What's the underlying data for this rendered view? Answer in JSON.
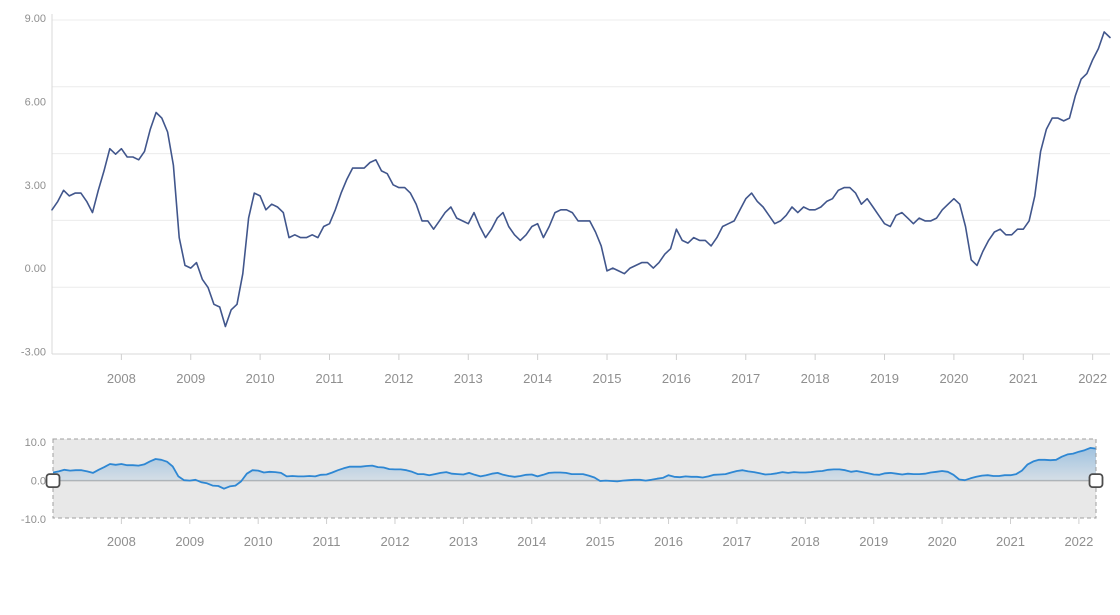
{
  "page": {
    "background": "#ffffff"
  },
  "main_chart": {
    "y_axis_labels": [
      {
        "label": "9.00",
        "value": 9
      },
      {
        "label": "6.00",
        "value": 6
      },
      {
        "label": "3.00",
        "value": 3
      },
      {
        "label": "0.00",
        "value": 0
      },
      {
        "label": "-3.00",
        "value": -3
      }
    ],
    "x_axis_labels": [
      "2008",
      "2009",
      "2010",
      "2011",
      "2012",
      "2013",
      "2014",
      "2015",
      "2016",
      "2017",
      "2018",
      "2019",
      "2020",
      "2021",
      "2022"
    ],
    "ylim": [
      -3.09,
      8.93
    ],
    "grid_line_count": 6,
    "grid_on": true
  },
  "navigator": {
    "y_axis_labels": [
      {
        "label": "10.0",
        "value": 10
      },
      {
        "label": "0.0",
        "value": 0
      },
      {
        "label": "-10.0",
        "value": -10
      }
    ],
    "x_axis_labels": [
      "2008",
      "2009",
      "2010",
      "2011",
      "2012",
      "2013",
      "2014",
      "2015",
      "2016",
      "2017",
      "2018",
      "2019",
      "2020",
      "2021",
      "2022"
    ],
    "ylim": [
      -9.7,
      10.8
    ],
    "range_selected": "full",
    "handles": [
      "left",
      "right"
    ]
  },
  "chart_data": {
    "type": "line",
    "title": "",
    "xlabel": "",
    "ylabel": "",
    "frequency": "monthly",
    "x_start": "2007-01",
    "x_end": "2022-04",
    "legend": "none",
    "values": [
      2.1,
      2.4,
      2.8,
      2.6,
      2.7,
      2.7,
      2.4,
      2.0,
      2.8,
      3.5,
      4.3,
      4.1,
      4.3,
      4.0,
      4.0,
      3.9,
      4.2,
      5.0,
      5.6,
      5.4,
      4.9,
      3.7,
      1.1,
      0.1,
      0.0,
      0.2,
      -0.4,
      -0.7,
      -1.3,
      -1.4,
      -2.1,
      -1.5,
      -1.3,
      -0.2,
      1.8,
      2.7,
      2.6,
      2.1,
      2.3,
      2.2,
      2.0,
      1.1,
      1.2,
      1.1,
      1.1,
      1.2,
      1.1,
      1.5,
      1.6,
      2.1,
      2.7,
      3.2,
      3.6,
      3.6,
      3.6,
      3.8,
      3.9,
      3.5,
      3.4,
      3.0,
      2.9,
      2.9,
      2.7,
      2.3,
      1.7,
      1.7,
      1.4,
      1.7,
      2.0,
      2.2,
      1.8,
      1.7,
      1.6,
      2.0,
      1.5,
      1.1,
      1.4,
      1.8,
      2.0,
      1.5,
      1.2,
      1.0,
      1.2,
      1.5,
      1.6,
      1.1,
      1.5,
      2.0,
      2.1,
      2.1,
      2.0,
      1.7,
      1.7,
      1.7,
      1.3,
      0.8,
      -0.1,
      0.0,
      -0.1,
      -0.2,
      0.0,
      0.1,
      0.2,
      0.2,
      0.0,
      0.2,
      0.5,
      0.7,
      1.4,
      1.0,
      0.9,
      1.1,
      1.0,
      1.0,
      0.8,
      1.1,
      1.5,
      1.6,
      1.7,
      2.1,
      2.5,
      2.7,
      2.4,
      2.2,
      1.9,
      1.6,
      1.7,
      1.9,
      2.2,
      2.0,
      2.2,
      2.1,
      2.1,
      2.2,
      2.4,
      2.5,
      2.8,
      2.9,
      2.9,
      2.7,
      2.3,
      2.5,
      2.2,
      1.9,
      1.6,
      1.5,
      1.9,
      2.0,
      1.8,
      1.6,
      1.8,
      1.7,
      1.7,
      1.8,
      2.1,
      2.3,
      2.5,
      2.3,
      1.5,
      0.3,
      0.1,
      0.6,
      1.0,
      1.3,
      1.4,
      1.2,
      1.2,
      1.4,
      1.4,
      1.7,
      2.6,
      4.2,
      5.0,
      5.4,
      5.4,
      5.3,
      5.4,
      6.2,
      6.8,
      7.0,
      7.5,
      7.9,
      8.5,
      8.3
    ]
  },
  "colors": {
    "main_line": "#41568c",
    "nav_line": "#2e87d3",
    "nav_fill": "#2e87d3",
    "grid": "#ececec",
    "axis": "#d8d8d8",
    "tick": "#cfcfcf",
    "label": "#8f8f8f",
    "nav_bg": "#e8e8e8",
    "nav_border": "#9f9f9f",
    "nav_zero": "#b7b7b7",
    "handle_border": "#4d4d4d",
    "handle_fill": "#ffffff"
  }
}
